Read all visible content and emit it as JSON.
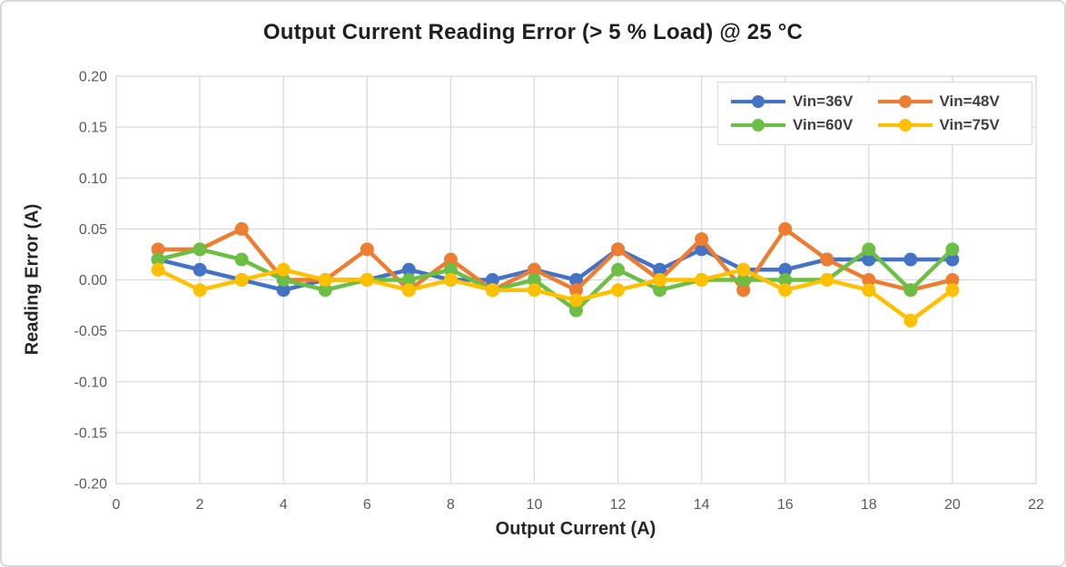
{
  "chart_data": {
    "type": "line",
    "title": "Output Current Reading Error (> 5 % Load) @ 25 °C",
    "xlabel": "Output Current (A)",
    "ylabel": "Reading Error (A)",
    "x": [
      1,
      2,
      3,
      4,
      5,
      6,
      7,
      8,
      9,
      10,
      11,
      12,
      13,
      14,
      15,
      16,
      17,
      18,
      19,
      20
    ],
    "series": [
      {
        "name": "Vin=36V",
        "color": "#4472C4",
        "values": [
          0.02,
          0.01,
          0.0,
          -0.01,
          0.0,
          0.0,
          0.01,
          0.0,
          0.0,
          0.01,
          0.0,
          0.03,
          0.01,
          0.03,
          0.01,
          0.01,
          0.02,
          0.02,
          0.02,
          0.02
        ]
      },
      {
        "name": "Vin=48V",
        "color": "#ED7D31",
        "values": [
          0.03,
          0.03,
          0.05,
          0.0,
          0.0,
          0.03,
          -0.01,
          0.02,
          -0.01,
          0.01,
          -0.01,
          0.03,
          0.0,
          0.04,
          -0.01,
          0.05,
          0.02,
          0.0,
          -0.01,
          0.0
        ]
      },
      {
        "name": "Vin=60V",
        "color": "#6CBE45",
        "values": [
          0.02,
          0.03,
          0.02,
          0.0,
          -0.01,
          0.0,
          0.0,
          0.01,
          -0.01,
          0.0,
          -0.03,
          0.01,
          -0.01,
          0.0,
          0.0,
          0.0,
          0.0,
          0.03,
          -0.01,
          0.03
        ]
      },
      {
        "name": "Vin=75V",
        "color": "#FFC000",
        "values": [
          0.01,
          -0.01,
          0.0,
          0.01,
          0.0,
          0.0,
          -0.01,
          0.0,
          -0.01,
          -0.01,
          -0.02,
          -0.01,
          0.0,
          0.0,
          0.01,
          -0.01,
          0.0,
          -0.01,
          -0.04,
          -0.01
        ]
      }
    ],
    "xlim": [
      0,
      22
    ],
    "ylim": [
      -0.2,
      0.2
    ],
    "x_ticks": [
      "0",
      "2",
      "4",
      "6",
      "8",
      "10",
      "12",
      "14",
      "16",
      "18",
      "20",
      "22"
    ],
    "y_ticks": [
      "0.20",
      "0.15",
      "0.10",
      "0.05",
      "0.00",
      "-0.05",
      "-0.10",
      "-0.15",
      "-0.20"
    ],
    "grid": true,
    "legend_position": "top-right",
    "grid_color": "#D9D9D9",
    "tick_label_color": "#595959",
    "title_color": "#1F1F1F",
    "axis_title_color": "#262626",
    "legend_text_color": "#404040"
  }
}
